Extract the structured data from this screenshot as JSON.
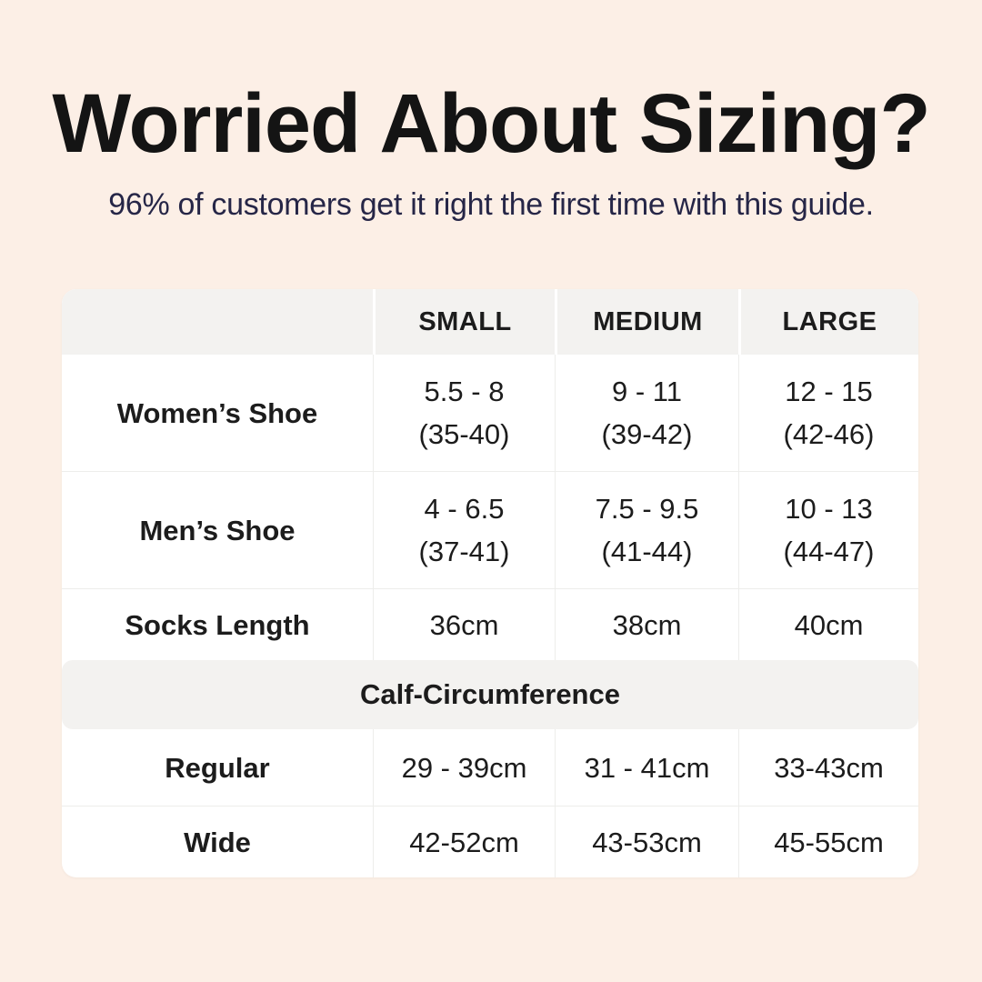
{
  "page": {
    "background_color": "#fcefe6"
  },
  "header": {
    "title": "Worried About Sizing?",
    "subtitle": "96% of customers get it right the first time with this guide.",
    "title_color": "#141414",
    "subtitle_color": "#262647"
  },
  "table": {
    "colors": {
      "card_bg": "#ffffff",
      "header_bg": "#f3f2f0",
      "divider": "#ededeb",
      "text": "#1c1c1c"
    },
    "columns": [
      "SMALL",
      "MEDIUM",
      "LARGE"
    ],
    "rows": [
      {
        "label": "Women’s Shoe",
        "small": {
          "l1": "5.5 - 8",
          "l2": "(35-40)"
        },
        "medium": {
          "l1": "9 - 11",
          "l2": "(39-42)"
        },
        "large": {
          "l1": "12 - 15",
          "l2": "(42-46)"
        }
      },
      {
        "label": "Men’s Shoe",
        "small": {
          "l1": "4 - 6.5",
          "l2": "(37-41)"
        },
        "medium": {
          "l1": "7.5 - 9.5",
          "l2": "(41-44)"
        },
        "large": {
          "l1": "10 - 13",
          "l2": "(44-47)"
        }
      },
      {
        "label": "Socks Length",
        "small": {
          "l1": "36cm"
        },
        "medium": {
          "l1": "38cm"
        },
        "large": {
          "l1": "40cm"
        }
      }
    ],
    "section_header": "Calf-Circumference",
    "calf_rows": [
      {
        "label": "Regular",
        "small": "29 - 39cm",
        "medium": "31 - 41cm",
        "large": "33-43cm"
      },
      {
        "label": "Wide",
        "small": "42-52cm",
        "medium": "43-53cm",
        "large": "45-55cm"
      }
    ]
  },
  "chart_data": {
    "type": "table",
    "title": "Worried About Sizing?",
    "subtitle": "96% of customers get it right the first time with this guide.",
    "columns": [
      "",
      "SMALL",
      "MEDIUM",
      "LARGE"
    ],
    "rows": [
      [
        "Women’s Shoe",
        "5.5 - 8 (35-40)",
        "9 - 11 (39-42)",
        "12 - 15 (42-46)"
      ],
      [
        "Men’s Shoe",
        "4 - 6.5 (37-41)",
        "7.5 - 9.5 (41-44)",
        "10 - 13 (44-47)"
      ],
      [
        "Socks Length",
        "36cm",
        "38cm",
        "40cm"
      ],
      [
        "Calf-Circumference",
        "",
        "",
        ""
      ],
      [
        "Regular",
        "29 - 39cm",
        "31 - 41cm",
        "33-43cm"
      ],
      [
        "Wide",
        "42-52cm",
        "43-53cm",
        "45-55cm"
      ]
    ]
  }
}
